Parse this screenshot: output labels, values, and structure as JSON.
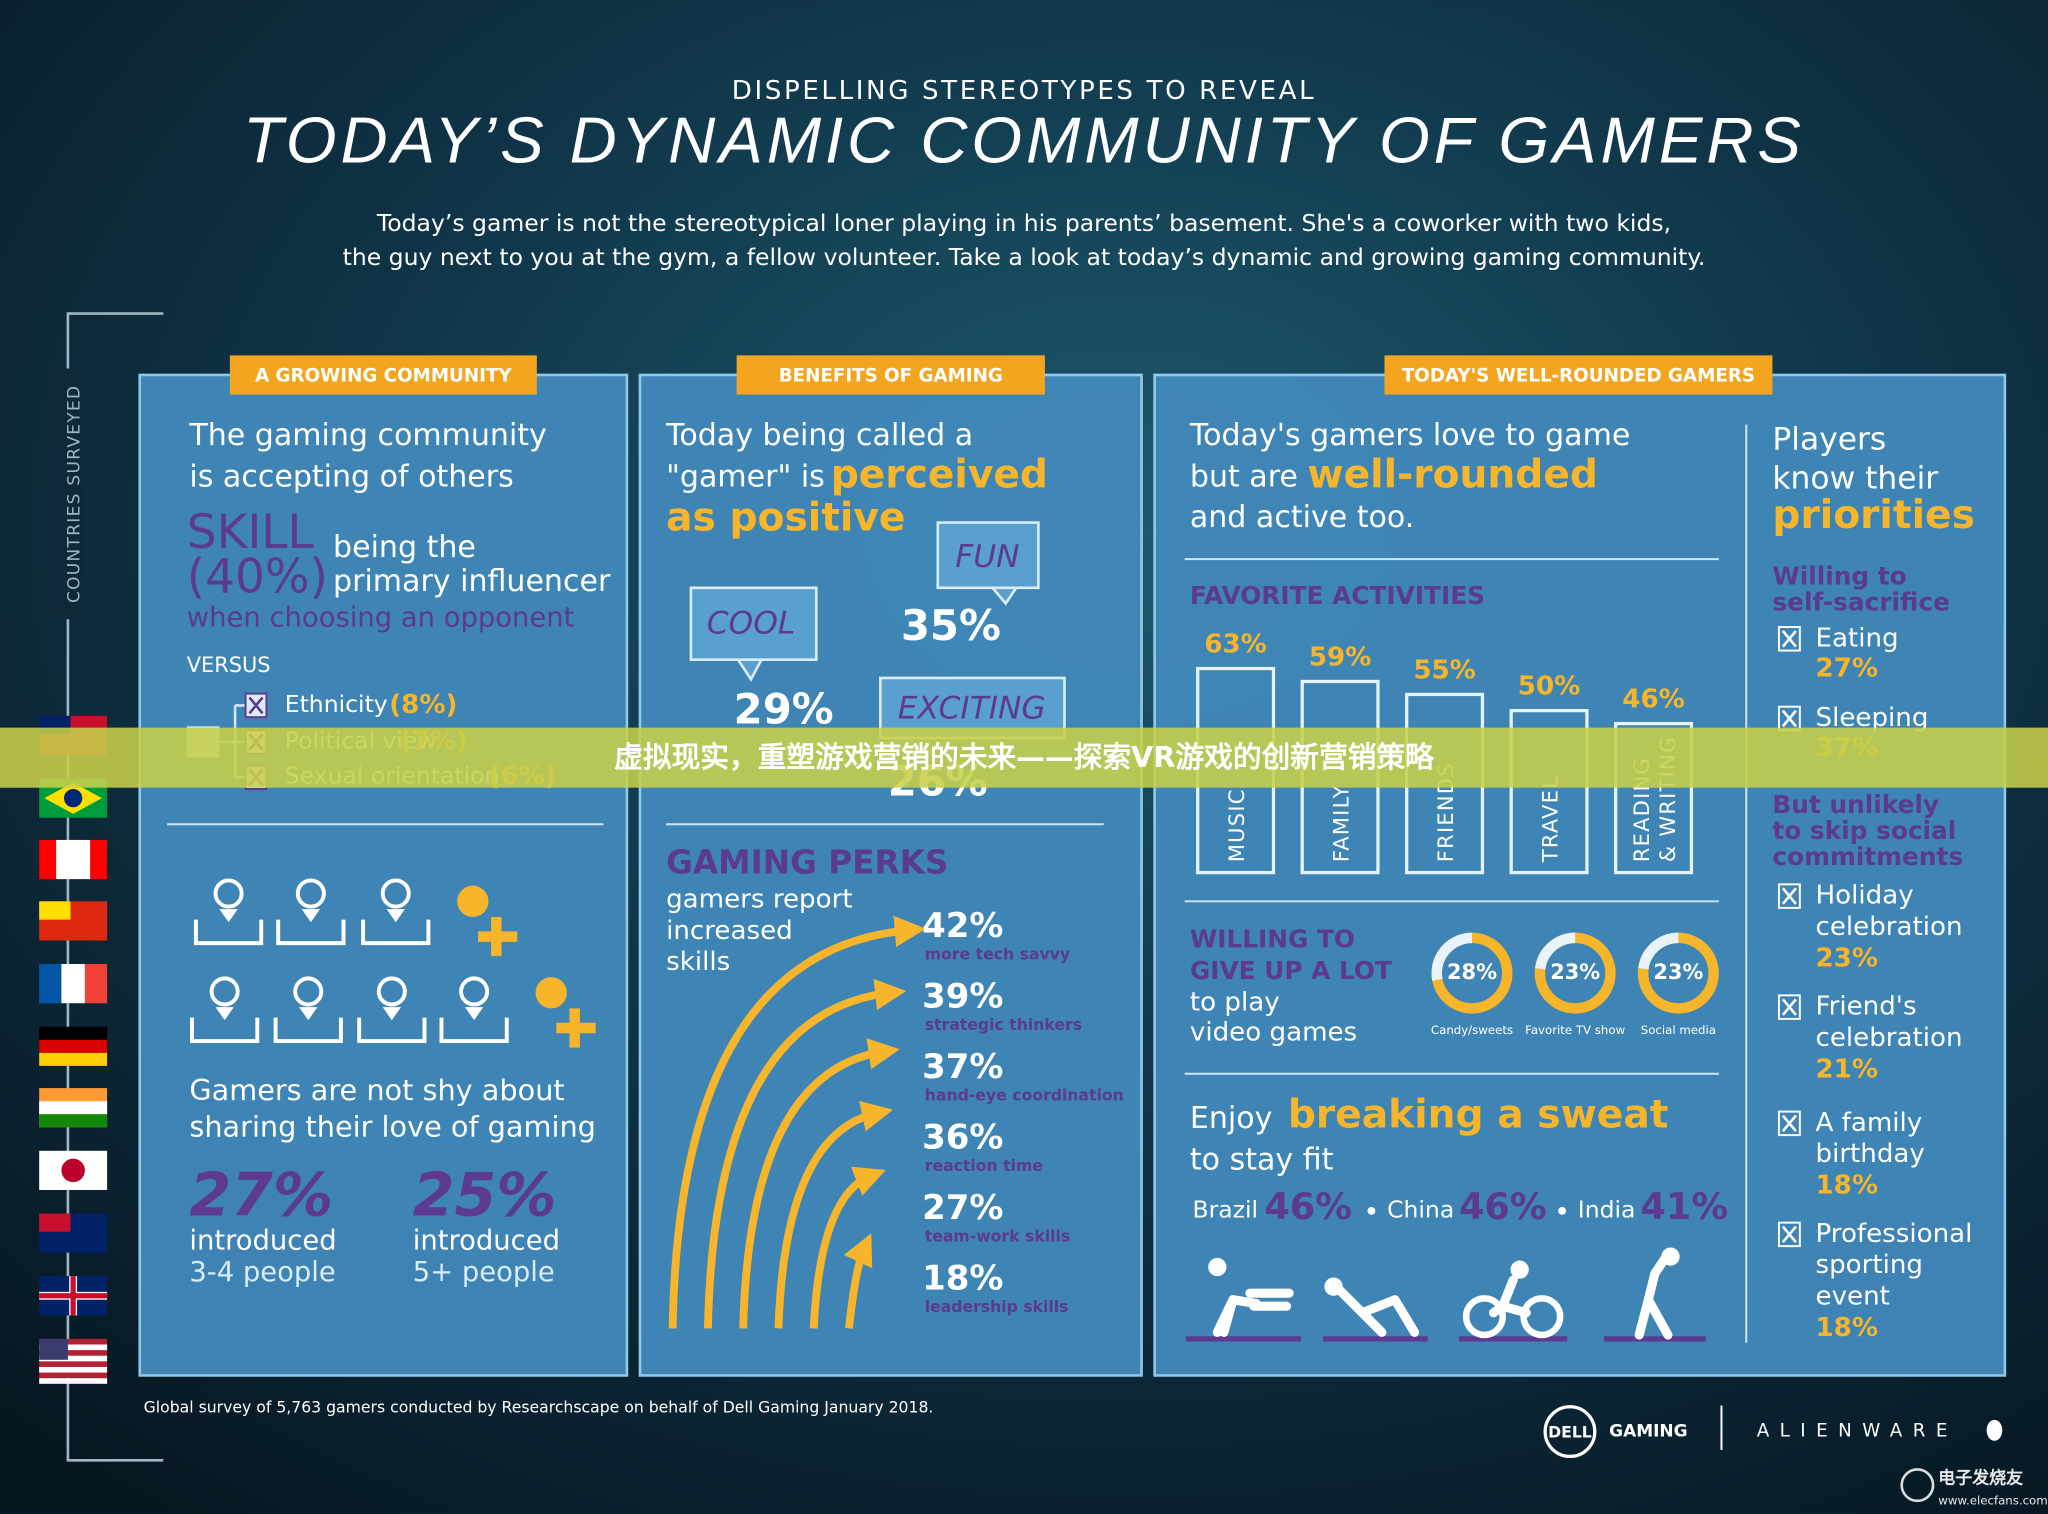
{
  "header": {
    "kicker": "DISPELLING STEREOTYPES TO REVEAL",
    "title": "TODAY’S DYNAMIC COMMUNITY OF GAMERS",
    "intro": [
      "Today’s gamer is not the stereotypical loner playing in his parents’ basement. She's a coworker with two kids,",
      "the guy next to you at the gym, a fellow volunteer. Take a look at today’s dynamic and growing gaming community."
    ]
  },
  "side_label": "COUNTRIES SURVEYED",
  "community": {
    "tab": "A GROWING COMMUNITY",
    "heading": [
      "The gaming community",
      "is accepting of others"
    ],
    "skill": "SKILL",
    "skill_value": "(40%)",
    "skill_text": [
      "being the",
      "primary influencer"
    ],
    "skill_note": "when choosing an opponent",
    "versus": "VERSUS",
    "factors": [
      {
        "label": "Ethnicity",
        "value": "(8%)"
      },
      {
        "label": "Political view",
        "value": "(7%)"
      },
      {
        "label": "Sexual orientation",
        "value": "(6%)"
      }
    ],
    "sharing": [
      "Gamers are not shy about",
      "sharing their love of gaming"
    ],
    "stats": [
      {
        "value": "27%",
        "label": "introduced",
        "detail": "3-4 people"
      },
      {
        "value": "25%",
        "label": "introduced",
        "detail": "5+ people"
      }
    ]
  },
  "benefits": {
    "tab": "BENEFITS OF GAMING",
    "heading": "Today being called a",
    "heading2": "\"gamer\" is",
    "highlight": [
      "perceived",
      "as positive"
    ],
    "words": [
      {
        "label": "COOL",
        "value": "29%"
      },
      {
        "label": "FUN",
        "value": "35%"
      },
      {
        "label": "EXCITING",
        "value": "26%"
      }
    ],
    "perks_title": "GAMING PERKS",
    "perks_text": [
      "gamers report",
      "increased",
      "skills"
    ],
    "perks": [
      {
        "value": "42%",
        "label": "more tech savvy"
      },
      {
        "value": "39%",
        "label": "strategic thinkers"
      },
      {
        "value": "37%",
        "label": "hand-eye coordination"
      },
      {
        "value": "36%",
        "label": "reaction time"
      },
      {
        "value": "27%",
        "label": "team-work skills"
      },
      {
        "value": "18%",
        "label": "leadership skills"
      }
    ]
  },
  "gamers": {
    "tab": "TODAY'S WELL-ROUNDED GAMERS",
    "heading": [
      "Today's gamers love to game",
      "but are",
      "and active too."
    ],
    "highlight": "well-rounded",
    "activities_title": "FAVORITE ACTIVITIES",
    "activities": [
      {
        "label": [
          "MUSIC"
        ],
        "value": "63%"
      },
      {
        "label": [
          "FAMILY"
        ],
        "value": "59%"
      },
      {
        "label": [
          "FRIENDS"
        ],
        "value": "55%"
      },
      {
        "label": [
          "TRAVEL"
        ],
        "value": "50%"
      },
      {
        "label": [
          "READING",
          "& WRITING"
        ],
        "value": "46%"
      }
    ],
    "give_up_title": [
      "WILLING TO",
      "GIVE UP A LOT"
    ],
    "give_up_text": [
      "to play",
      "video games"
    ],
    "give_up": [
      {
        "value": "28%",
        "label": "Candy/sweets"
      },
      {
        "value": "23%",
        "label": "Favorite TV show"
      },
      {
        "value": "23%",
        "label": "Social media"
      }
    ],
    "fit": [
      "Enjoy",
      "to stay fit"
    ],
    "fit_highlight": "breaking a sweat",
    "fit_countries": [
      {
        "name": "Brazil",
        "value": "46%"
      },
      {
        "name": "China",
        "value": "46%"
      },
      {
        "name": "India",
        "value": "41%"
      }
    ],
    "priorities": {
      "heading": [
        "Players",
        "know their"
      ],
      "highlight": "priorities",
      "sacrifice_title": [
        "Willing to",
        "self-sacrifice"
      ],
      "sacrifice": [
        {
          "label": [
            "Eating"
          ],
          "value": "27%"
        },
        {
          "label": [
            "Sleeping"
          ],
          "value": "37%"
        }
      ],
      "social_title": [
        "But unlikely",
        "to skip social",
        "commitments"
      ],
      "social": [
        {
          "label": [
            "Holiday",
            "celebration"
          ],
          "value": "23%"
        },
        {
          "label": [
            "Friend's",
            "celebration"
          ],
          "value": "21%"
        },
        {
          "label": [
            "A family",
            "birthday"
          ],
          "value": "18%"
        },
        {
          "label": [
            "Professional",
            "sporting",
            "event"
          ],
          "value": "18%"
        }
      ]
    }
  },
  "footer": {
    "note": "Global survey of 5,763 gamers conducted by Researchscape on behalf of Dell Gaming January 2018.",
    "dell": "DELL",
    "gaming": "GAMING",
    "alienware": "ALIENWARE"
  },
  "banner": "虚拟现实，重塑游戏营销的未来——探索VR游戏的创新营销策略",
  "watermark": {
    "name": "电子发烧友",
    "url": "www.elecfans.com"
  }
}
